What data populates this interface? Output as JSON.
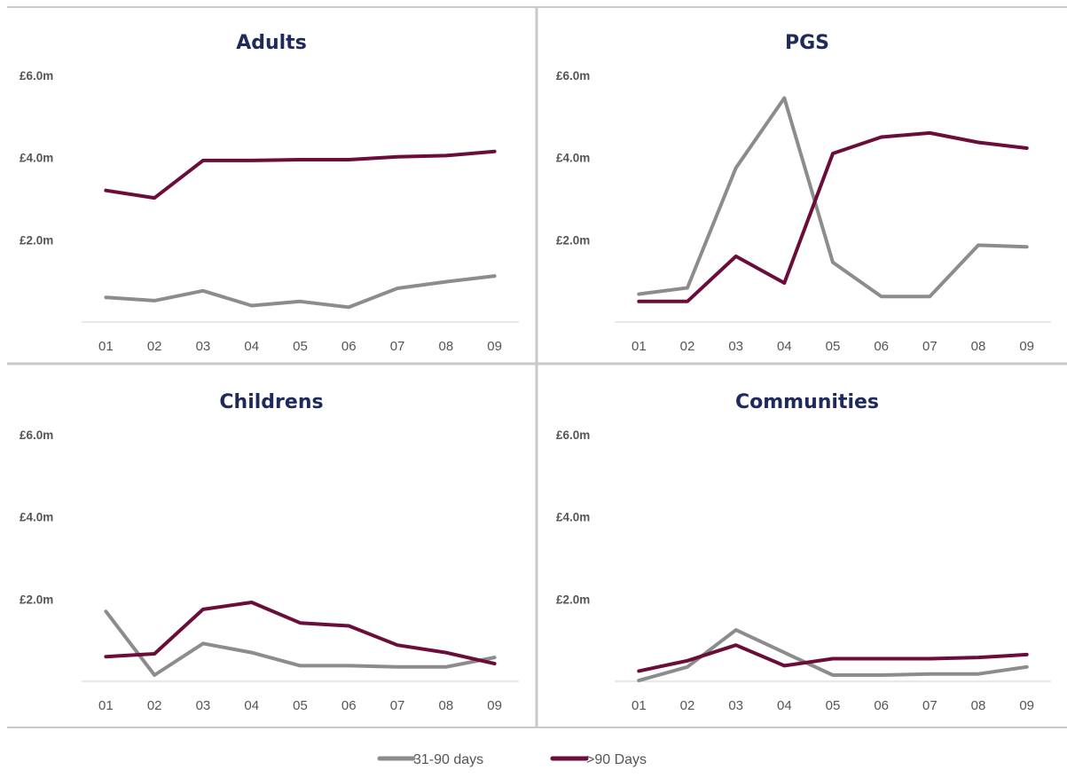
{
  "colors": {
    "series_31_90": "#8c8c8c",
    "series_90_plus": "#6b0d3a",
    "title": "#1f2a5c",
    "tick": "#555555",
    "border": "#c9c9c9"
  },
  "legend": {
    "items": [
      {
        "label": "31-90 days",
        "color": "#8c8c8c"
      },
      {
        "label": ">90 Days",
        "color": "#6b0d3a"
      }
    ]
  },
  "chart_data": [
    {
      "type": "line",
      "title": "Adults",
      "categories": [
        "01",
        "02",
        "03",
        "04",
        "05",
        "06",
        "07",
        "08",
        "09"
      ],
      "yticks": [
        "£2.0m",
        "£4.0m",
        "£6.0m"
      ],
      "ylim": [
        0,
        6.0
      ],
      "series": [
        {
          "name": "31-90 days",
          "values": [
            0.6,
            0.52,
            0.76,
            0.4,
            0.5,
            0.36,
            0.82,
            0.98,
            1.12
          ]
        },
        {
          "name": ">90 Days",
          "values": [
            3.2,
            3.02,
            3.93,
            3.93,
            3.95,
            3.95,
            4.02,
            4.05,
            4.15
          ]
        }
      ]
    },
    {
      "type": "line",
      "title": "PGS",
      "categories": [
        "01",
        "02",
        "03",
        "04",
        "05",
        "06",
        "07",
        "08",
        "09"
      ],
      "yticks": [
        "£2.0m",
        "£4.0m",
        "£6.0m"
      ],
      "ylim": [
        0,
        6.0
      ],
      "series": [
        {
          "name": "31-90 days",
          "values": [
            0.68,
            0.83,
            3.75,
            5.45,
            1.45,
            0.62,
            0.62,
            1.87,
            1.83
          ]
        },
        {
          "name": ">90 Days",
          "values": [
            0.5,
            0.5,
            1.6,
            0.95,
            4.1,
            4.5,
            4.6,
            4.37,
            4.23
          ]
        }
      ]
    },
    {
      "type": "line",
      "title": "Childrens",
      "categories": [
        "01",
        "02",
        "03",
        "04",
        "05",
        "06",
        "07",
        "08",
        "09"
      ],
      "yticks": [
        "£2.0m",
        "£4.0m",
        "£6.0m"
      ],
      "ylim": [
        0,
        6.0
      ],
      "series": [
        {
          "name": "31-90 days",
          "values": [
            1.7,
            0.15,
            0.92,
            0.7,
            0.38,
            0.38,
            0.35,
            0.35,
            0.58
          ]
        },
        {
          "name": ">90 Days",
          "values": [
            0.6,
            0.67,
            1.75,
            1.92,
            1.42,
            1.35,
            0.88,
            0.7,
            0.43
          ]
        }
      ]
    },
    {
      "type": "line",
      "title": "Communities",
      "categories": [
        "01",
        "02",
        "03",
        "04",
        "05",
        "06",
        "07",
        "08",
        "09"
      ],
      "yticks": [
        "£2.0m",
        "£4.0m",
        "£6.0m"
      ],
      "ylim": [
        0,
        6.0
      ],
      "series": [
        {
          "name": "31-90 days",
          "values": [
            0.02,
            0.35,
            1.25,
            0.7,
            0.15,
            0.15,
            0.18,
            0.18,
            0.35
          ]
        },
        {
          "name": ">90 Days",
          "values": [
            0.25,
            0.5,
            0.88,
            0.38,
            0.55,
            0.55,
            0.55,
            0.58,
            0.65
          ]
        }
      ]
    }
  ]
}
